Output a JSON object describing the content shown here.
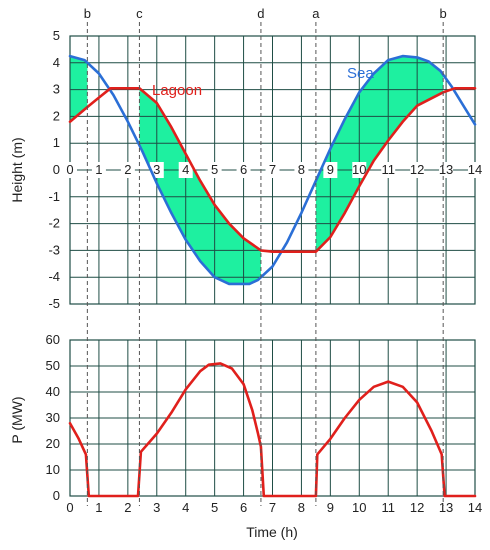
{
  "colors": {
    "sea": "#2b6fd6",
    "lagoon": "#e0201c",
    "fill": "#1ef0a0",
    "grid": "#1f4d45",
    "frame": "#1f4d45",
    "guide": "#555555"
  },
  "shared_xlabel": "Time (h)",
  "markers": [
    {
      "label": "b",
      "x": 0.6
    },
    {
      "label": "c",
      "x": 2.4
    },
    {
      "label": "d",
      "x": 6.6
    },
    {
      "label": "a",
      "x": 8.5
    },
    {
      "label": "b",
      "x": 12.9
    }
  ],
  "chart_data": [
    {
      "type": "line",
      "xlabel": "",
      "ylabel": "Height (m)",
      "xlim": [
        0,
        14
      ],
      "ylim": [
        -5,
        5
      ],
      "x_ticks": [
        0,
        1,
        2,
        3,
        4,
        5,
        6,
        7,
        8,
        9,
        10,
        11,
        12,
        13,
        14
      ],
      "y_ticks": [
        5,
        4,
        3,
        2,
        1,
        0,
        -1,
        -2,
        -3,
        -4,
        -5
      ],
      "grid": true,
      "series": [
        {
          "name": "Sea",
          "color_key": "sea",
          "x": [
            0,
            0.5,
            1,
            1.5,
            2,
            2.5,
            3,
            3.5,
            4,
            4.5,
            5,
            5.5,
            6,
            6.2,
            6.5,
            7,
            7.5,
            8,
            8.5,
            9,
            9.5,
            10,
            10.5,
            11,
            11.5,
            12,
            12.4,
            12.8,
            13.2,
            13.6,
            14
          ],
          "y": [
            4.25,
            4.1,
            3.6,
            2.8,
            1.8,
            0.7,
            -0.5,
            -1.6,
            -2.6,
            -3.4,
            -4.0,
            -4.25,
            -4.25,
            -4.25,
            -4.1,
            -3.6,
            -2.7,
            -1.6,
            -0.4,
            0.8,
            1.9,
            2.9,
            3.6,
            4.1,
            4.25,
            4.2,
            4.05,
            3.7,
            3.1,
            2.4,
            1.7
          ]
        },
        {
          "name": "Lagoon",
          "color_key": "lagoon",
          "x": [
            0,
            0.6,
            1.0,
            1.4,
            2.4,
            3,
            3.5,
            4,
            4.5,
            5,
            5.5,
            6,
            6.6,
            7,
            7.5,
            8,
            8.5,
            9,
            9.5,
            10,
            10.5,
            11,
            11.5,
            12,
            12.9,
            13.3,
            13.7,
            14
          ],
          "y": [
            1.8,
            2.35,
            2.7,
            3.05,
            3.05,
            2.5,
            1.6,
            0.6,
            -0.4,
            -1.3,
            -2.0,
            -2.55,
            -3.0,
            -3.05,
            -3.05,
            -3.05,
            -3.05,
            -2.5,
            -1.6,
            -0.6,
            0.35,
            1.1,
            1.8,
            2.4,
            2.9,
            3.05,
            3.05,
            3.05
          ]
        }
      ],
      "shaded_intervals": [
        [
          0,
          0.6
        ],
        [
          2.4,
          6.6
        ],
        [
          8.5,
          12.9
        ]
      ]
    },
    {
      "type": "line",
      "xlabel": "Time (h)",
      "ylabel": "P (MW)",
      "xlim": [
        0,
        14
      ],
      "ylim": [
        0,
        60
      ],
      "x_ticks": [
        0,
        1,
        2,
        3,
        4,
        5,
        6,
        7,
        8,
        9,
        10,
        11,
        12,
        13,
        14
      ],
      "y_ticks": [
        60,
        50,
        40,
        30,
        20,
        10,
        0
      ],
      "grid": true,
      "series": [
        {
          "color_key": "lagoon",
          "x": [
            0,
            0.3,
            0.55,
            0.65,
            2.35,
            2.45,
            3,
            3.5,
            4,
            4.5,
            4.8,
            5.2,
            5.6,
            6,
            6.3,
            6.5,
            6.6,
            6.7,
            8.5,
            8.55,
            9,
            9.5,
            10,
            10.5,
            11,
            11.5,
            12,
            12.5,
            12.85,
            12.95,
            14
          ],
          "y": [
            28,
            22,
            16,
            0,
            0,
            17,
            24,
            32,
            41,
            48,
            50.5,
            51,
            49,
            43,
            33,
            24,
            19,
            0,
            0,
            16,
            22,
            30,
            37,
            42,
            44,
            42,
            36,
            25,
            16,
            0,
            0
          ]
        }
      ]
    }
  ],
  "series_labels": [
    {
      "text": "Lagoon",
      "color_key": "lagoon"
    },
    {
      "text": "Sea",
      "color_key": "sea"
    }
  ]
}
